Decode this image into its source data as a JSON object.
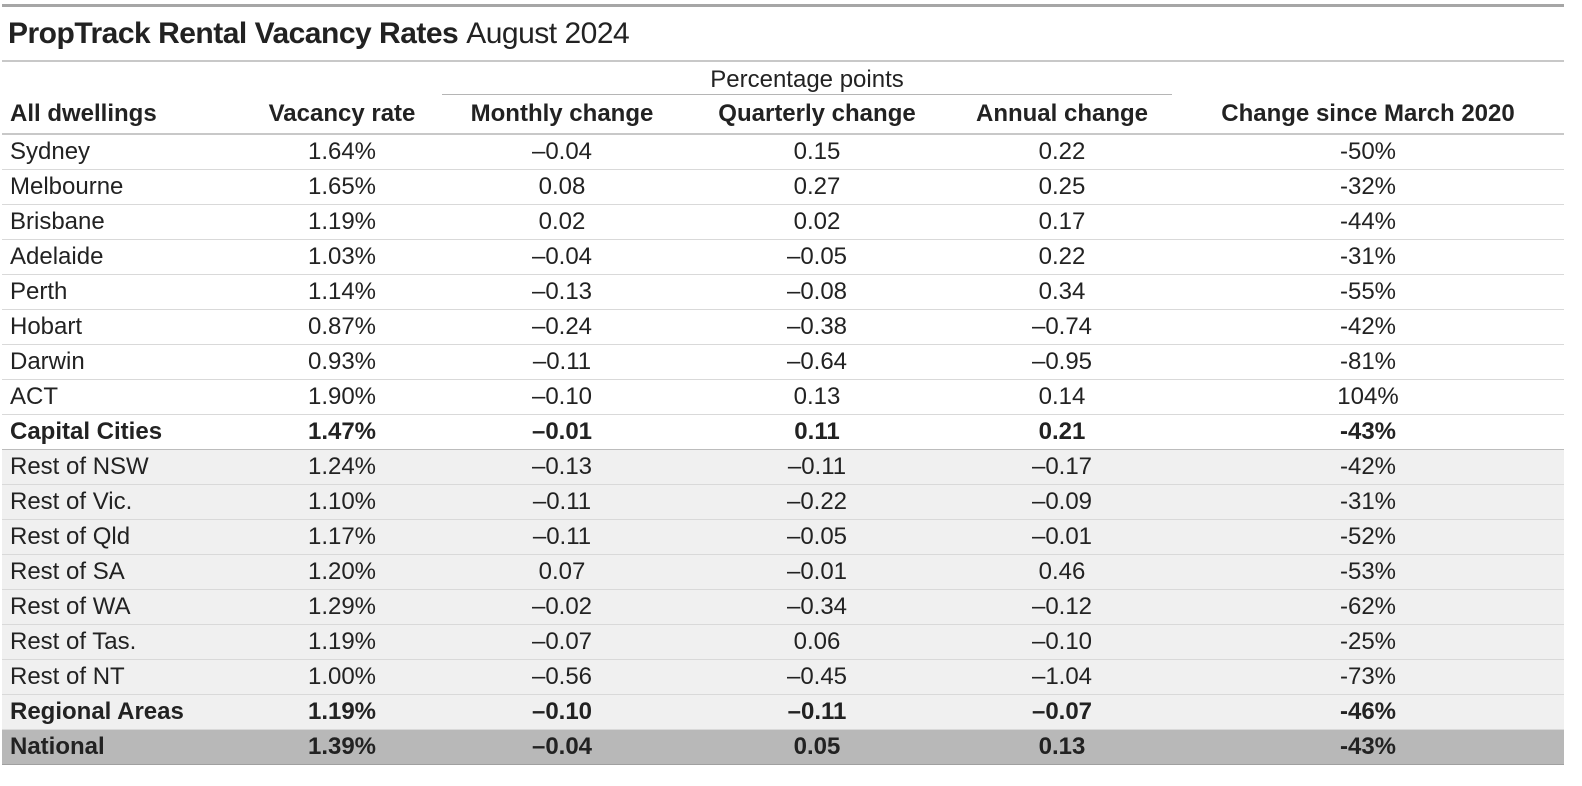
{
  "title_bold": "PropTrack Rental Vacancy Rates",
  "title_light": "August 2024",
  "group_label": "Percentage points",
  "headers": [
    "All dwellings",
    "Vacancy rate",
    "Monthly change",
    "Quarterly change",
    "Annual change",
    "Change since March 2020"
  ],
  "rows": [
    {
      "name": "Sydney",
      "values": [
        "1.64%",
        "–0.04",
        "0.15",
        "0.22",
        "-50%"
      ]
    },
    {
      "name": "Melbourne",
      "values": [
        "1.65%",
        "0.08",
        "0.27",
        "0.25",
        "-32%"
      ]
    },
    {
      "name": "Brisbane",
      "values": [
        "1.19%",
        "0.02",
        "0.02",
        "0.17",
        "-44%"
      ]
    },
    {
      "name": "Adelaide",
      "values": [
        "1.03%",
        "–0.04",
        "–0.05",
        "0.22",
        "-31%"
      ]
    },
    {
      "name": "Perth",
      "values": [
        "1.14%",
        "–0.13",
        "–0.08",
        "0.34",
        "-55%"
      ]
    },
    {
      "name": "Hobart",
      "values": [
        "0.87%",
        "–0.24",
        "–0.38",
        "–0.74",
        "-42%"
      ]
    },
    {
      "name": "Darwin",
      "values": [
        "0.93%",
        "–0.11",
        "–0.64",
        "–0.95",
        "-81%"
      ]
    },
    {
      "name": "ACT",
      "values": [
        "1.90%",
        "–0.10",
        "0.13",
        "0.14",
        "104%"
      ]
    },
    {
      "name": "Capital Cities",
      "values": [
        "1.47%",
        "–0.01",
        "0.11",
        "0.21",
        "-43%"
      ]
    },
    {
      "name": "Rest of NSW",
      "values": [
        "1.24%",
        "–0.13",
        "–0.11",
        "–0.17",
        "-42%"
      ]
    },
    {
      "name": "Rest of Vic.",
      "values": [
        "1.10%",
        "–0.11",
        "–0.22",
        "–0.09",
        "-31%"
      ]
    },
    {
      "name": "Rest of Qld",
      "values": [
        "1.17%",
        "–0.11",
        "–0.05",
        "–0.01",
        "-52%"
      ]
    },
    {
      "name": "Rest of SA",
      "values": [
        "1.20%",
        "0.07",
        "–0.01",
        "0.46",
        "-53%"
      ]
    },
    {
      "name": "Rest of WA",
      "values": [
        "1.29%",
        "–0.02",
        "–0.34",
        "–0.12",
        "-62%"
      ]
    },
    {
      "name": "Rest of Tas.",
      "values": [
        "1.19%",
        "–0.07",
        "0.06",
        "–0.10",
        "-25%"
      ]
    },
    {
      "name": "Rest of NT",
      "values": [
        "1.00%",
        "–0.56",
        "–0.45",
        "–1.04",
        "-73%"
      ]
    },
    {
      "name": "Regional Areas",
      "values": [
        "1.19%",
        "–0.10",
        "–0.11",
        "–0.07",
        "-46%"
      ]
    },
    {
      "name": "National",
      "values": [
        "1.39%",
        "–0.04",
        "0.05",
        "0.13",
        "-43%"
      ]
    }
  ],
  "colors": {
    "regional_shade": "#f0f0f0",
    "national_shade": "#b8b8b8"
  }
}
